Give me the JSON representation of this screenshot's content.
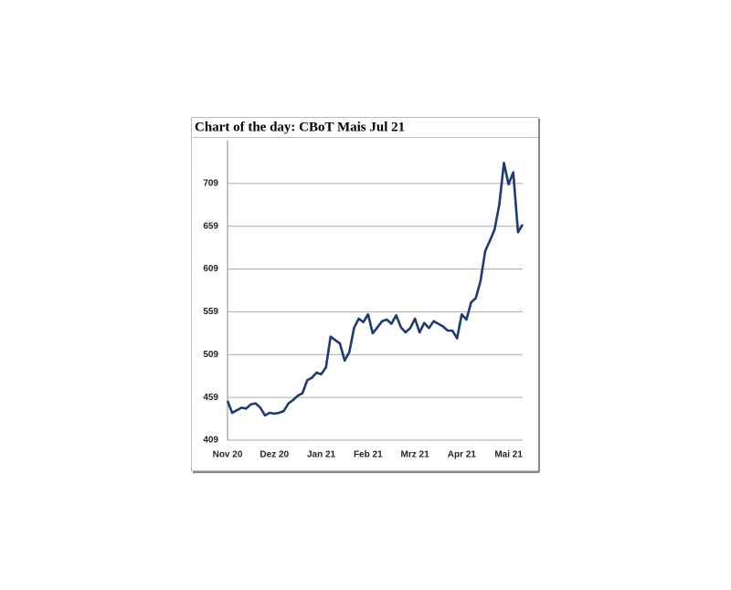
{
  "chart_data": {
    "type": "line",
    "title": "Chart of the day: CBoT Mais Jul 21",
    "categories": [
      "Nov 20",
      null,
      null,
      null,
      null,
      null,
      null,
      null,
      null,
      null,
      "Dez 20",
      null,
      null,
      null,
      null,
      null,
      null,
      null,
      null,
      null,
      "Jan 21",
      null,
      null,
      null,
      null,
      null,
      null,
      null,
      null,
      null,
      "Feb 21",
      null,
      null,
      null,
      null,
      null,
      null,
      null,
      null,
      null,
      "Mrz 21",
      null,
      null,
      null,
      null,
      null,
      null,
      null,
      null,
      null,
      "Apr 21",
      null,
      null,
      null,
      null,
      null,
      null,
      null,
      null,
      null,
      "Mai 21",
      null,
      null,
      null
    ],
    "series": [
      {
        "name": "CBoT Mais Jul 21",
        "color": "#1f3a6e",
        "values": [
          455,
          441,
          444,
          447,
          446,
          451,
          452,
          447,
          438,
          441,
          440,
          441,
          443,
          452,
          456,
          461,
          464,
          479,
          482,
          488,
          486,
          494,
          530,
          526,
          522,
          502,
          512,
          540,
          551,
          547,
          556,
          534,
          541,
          548,
          550,
          545,
          555,
          541,
          535,
          540,
          551,
          535,
          546,
          540,
          548,
          545,
          542,
          537,
          537,
          528,
          556,
          550,
          570,
          575,
          595,
          630,
          642,
          655,
          684,
          733,
          708,
          722,
          652,
          661
        ]
      }
    ],
    "ylim": [
      409,
      759
    ],
    "yticks": [
      409,
      459,
      509,
      559,
      609,
      659,
      709
    ],
    "grid": true
  }
}
